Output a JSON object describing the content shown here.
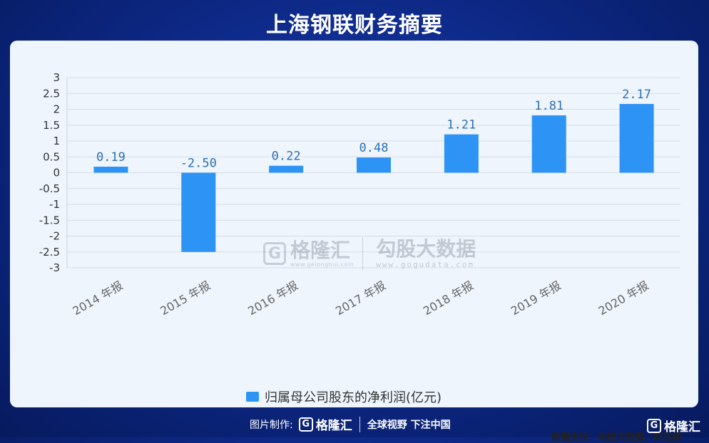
{
  "title": "上海钢联财务摘要",
  "chart_data": {
    "type": "bar",
    "categories": [
      "2014 年报",
      "2015 年报",
      "2016 年报",
      "2017 年报",
      "2018 年报",
      "2019 年报",
      "2020 年报"
    ],
    "series": [
      {
        "name": "归属母公司股东的净利润(亿元)",
        "values": [
          0.19,
          -2.5,
          0.22,
          0.48,
          1.21,
          1.81,
          2.17
        ]
      }
    ],
    "value_labels": [
      "0.19",
      "-2.50",
      "0.22",
      "0.48",
      "1.21",
      "1.81",
      "2.17"
    ],
    "yticks": [
      "3",
      "2.5",
      "2",
      "1.5",
      "1",
      "0.5",
      "0",
      "-0.5",
      "-1",
      "-1.5",
      "-2",
      "-2.5",
      "-3"
    ],
    "ylim": [
      -3,
      3
    ],
    "grid": true,
    "legend_position": "bottom-center",
    "bar_color": "#2d93f5"
  },
  "legend_label": "归属母公司股东的净利润(亿元)",
  "source": "数据支持：勾股大数据、同花顺",
  "watermark": {
    "logo_letter": "G",
    "brand": "格隆汇",
    "brand_url": "www.gelonghui.com",
    "partner": "勾股大数据",
    "partner_url": "www.gogudata.com"
  },
  "footer": {
    "label": "图片制作:",
    "logo_letter": "G",
    "brand": "格隆汇",
    "slogan": "全球视野 下注中国"
  },
  "corner_logo": {
    "logo_letter": "G",
    "brand": "格隆汇"
  }
}
